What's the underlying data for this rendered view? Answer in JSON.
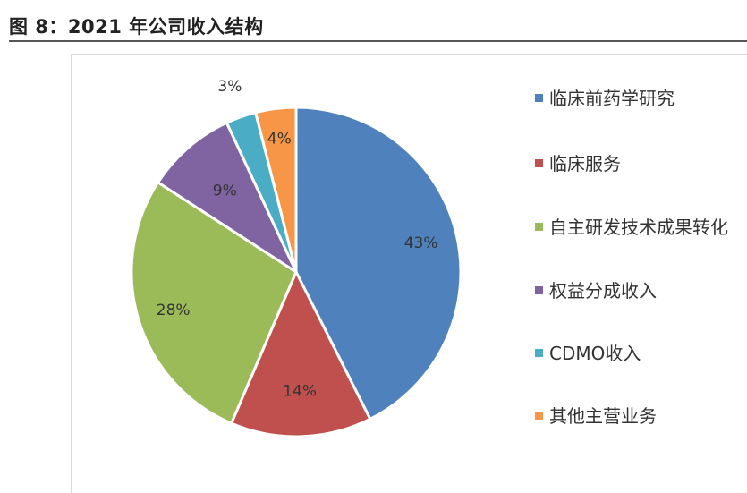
{
  "figure_title": "图 8：2021 年公司收入结构",
  "chart_data": {
    "type": "pie",
    "slices": [
      {
        "label": "临床前药学研究",
        "value": 43,
        "display": "43%",
        "color": "#4f81bd"
      },
      {
        "label": "临床服务",
        "value": 14,
        "display": "14%",
        "color": "#c0504d"
      },
      {
        "label": "自主研发技术成果转化",
        "value": 28,
        "display": "28%",
        "color": "#9bbb59"
      },
      {
        "label": "权益分成收入",
        "value": 9,
        "display": "9%",
        "color": "#8064a2"
      },
      {
        "label": "CDMO收入",
        "value": 3,
        "display": "3%",
        "color": "#4bacc6"
      },
      {
        "label": "其他主营业务",
        "value": 4,
        "display": "4%",
        "color": "#f79646"
      }
    ],
    "legend_position": "right"
  }
}
